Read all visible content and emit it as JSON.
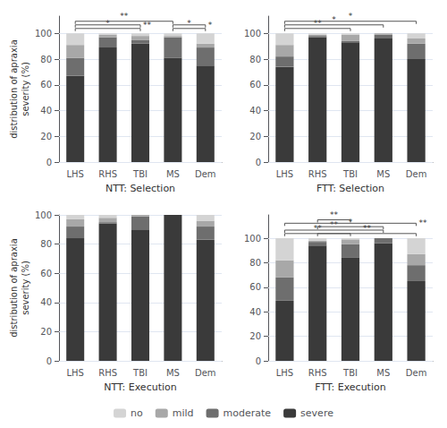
{
  "chart_data": [
    {
      "type": "bar",
      "stacked": true,
      "xlabel": "NTT: Selection",
      "ylabel": "distribution of apraxia\nseverity (%)",
      "categories": [
        "LHS",
        "RHS",
        "TBI",
        "MS",
        "Dem"
      ],
      "series": [
        {
          "name": "severe",
          "color": "#3a3a3a",
          "values": [
            67,
            89,
            92,
            81,
            75
          ]
        },
        {
          "name": "moderate",
          "color": "#6e6e6e",
          "values": [
            14,
            8,
            3,
            16,
            14
          ]
        },
        {
          "name": "mild",
          "color": "#a8a8a8",
          "values": [
            10,
            2,
            3,
            1,
            3
          ]
        },
        {
          "name": "no",
          "color": "#d4d4d4",
          "values": [
            9,
            1,
            2,
            2,
            8
          ]
        }
      ],
      "ylim": [
        0,
        113.4
      ],
      "yticks": [
        0,
        20,
        40,
        60,
        80,
        100
      ],
      "grid": true,
      "legend": "bottom",
      "annotations": [
        {
          "x1": "LHS",
          "x2": "TBI",
          "y": 103.8,
          "label": "*"
        },
        {
          "x1": "LHS",
          "x2": "TBI",
          "y": 106.6,
          "label": "**"
        },
        {
          "x1": "LHS",
          "x2": "MS",
          "y": 109.4,
          "label": "**"
        },
        {
          "x1": "MS",
          "x2": "Dem",
          "y": 103.8,
          "label": "*"
        },
        {
          "x1": "MS",
          "x2": "Dem",
          "y": 106.6,
          "label": "*"
        }
      ]
    },
    {
      "type": "bar",
      "stacked": true,
      "xlabel": "FTT: Selection",
      "categories": [
        "LHS",
        "RHS",
        "TBI",
        "MS",
        "Dem"
      ],
      "series": [
        {
          "name": "severe",
          "color": "#3a3a3a",
          "values": [
            74,
            97,
            93,
            96,
            80
          ]
        },
        {
          "name": "moderate",
          "color": "#6e6e6e",
          "values": [
            8,
            1,
            1,
            3,
            12
          ]
        },
        {
          "name": "mild",
          "color": "#a8a8a8",
          "values": [
            9,
            1,
            5,
            1,
            4
          ]
        },
        {
          "name": "no",
          "color": "#d4d4d4",
          "values": [
            9,
            1,
            1,
            0,
            4
          ]
        }
      ],
      "ylim": [
        0,
        113.4
      ],
      "yticks": [
        0,
        20,
        40,
        60,
        80,
        100
      ],
      "grid": true,
      "legend": "bottom",
      "annotations": [
        {
          "x1": "LHS",
          "x2": "TBI",
          "y": 103.8,
          "label": "**"
        },
        {
          "x1": "LHS",
          "x2": "MS",
          "y": 106.6,
          "label": "*"
        },
        {
          "x1": "LHS",
          "x2": "Dem",
          "y": 109.4,
          "label": "*"
        }
      ]
    },
    {
      "type": "bar",
      "stacked": true,
      "xlabel": "NTT: Execution",
      "ylabel": "distribution of apraxia\nseverity (%)",
      "categories": [
        "LHS",
        "RHS",
        "TBI",
        "MS",
        "Dem"
      ],
      "series": [
        {
          "name": "severe",
          "color": "#3a3a3a",
          "values": [
            84,
            94,
            90,
            100,
            83
          ]
        },
        {
          "name": "moderate",
          "color": "#6e6e6e",
          "values": [
            8,
            1,
            9,
            0,
            9
          ]
        },
        {
          "name": "mild",
          "color": "#a8a8a8",
          "values": [
            5,
            3,
            1,
            0,
            4
          ]
        },
        {
          "name": "no",
          "color": "#d4d4d4",
          "values": [
            3,
            2,
            0,
            0,
            4
          ]
        }
      ],
      "ylim": [
        0,
        100
      ],
      "yticks": [
        0,
        20,
        40,
        60,
        80,
        100
      ],
      "grid": true,
      "legend": "bottom"
    },
    {
      "type": "bar",
      "stacked": true,
      "xlabel": "FTT: Execution",
      "categories": [
        "LHS",
        "RHS",
        "TBI",
        "MS",
        "Dem"
      ],
      "series": [
        {
          "name": "severe",
          "color": "#3a3a3a",
          "values": [
            49,
            94,
            84,
            96,
            65
          ]
        },
        {
          "name": "moderate",
          "color": "#6e6e6e",
          "values": [
            19,
            3,
            11,
            4,
            13
          ]
        },
        {
          "name": "mild",
          "color": "#a8a8a8",
          "values": [
            14,
            1,
            4,
            0,
            9
          ]
        },
        {
          "name": "no",
          "color": "#d4d4d4",
          "values": [
            18,
            2,
            1,
            0,
            13
          ]
        }
      ],
      "ylim": [
        0,
        119
      ],
      "yticks": [
        0,
        20,
        40,
        60,
        80,
        100
      ],
      "grid": true,
      "legend": "bottom",
      "annotations": [
        {
          "x1": "LHS",
          "x2": "TBI",
          "y": 103.8,
          "label": "**"
        },
        {
          "x1": "LHS",
          "x2": "MS",
          "y": 106.6,
          "label": "**"
        },
        {
          "x1": "RHS",
          "x2": "MS",
          "y": 109.4,
          "label": "*"
        },
        {
          "x1": "LHS",
          "x2": "Dem",
          "y": 112.2,
          "label": "**"
        },
        {
          "x1": "RHS",
          "x2": "Dem",
          "y": 103.8,
          "label": "**"
        },
        {
          "x1": "RHS",
          "x2": "TBI",
          "y": 115,
          "label": "**"
        }
      ]
    }
  ]
}
